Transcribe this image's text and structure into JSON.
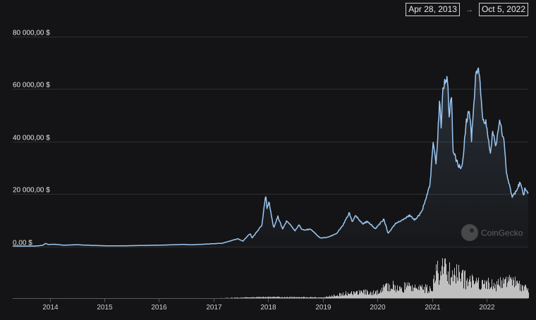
{
  "date_range": {
    "start": "Apr 28, 2013",
    "arrow": "→",
    "end": "Oct 5, 2022"
  },
  "watermark": "CoinGecko",
  "colors": {
    "background": "#141416",
    "price_line": "#9cc7f2",
    "volume_bars": "#dedede",
    "grid": "#2f2f33",
    "text": "#e6e6e6"
  },
  "chart_data": {
    "type": "area",
    "x_axis": {
      "type": "date",
      "range": [
        "2013-04-28",
        "2022-10-05"
      ],
      "tick_labels": [
        "2014",
        "2015",
        "2016",
        "2017",
        "2018",
        "2019",
        "2020",
        "2021",
        "2022"
      ]
    },
    "y_axis": {
      "range": [
        0,
        80000
      ],
      "tick_values": [
        0,
        20000,
        40000,
        60000,
        80000
      ],
      "tick_labels": [
        "0,00 $",
        "20 000,00 $",
        "40 000,00 $",
        "60 000,00 $",
        "80 000,00 $"
      ]
    },
    "grid": true,
    "series": [
      {
        "points": [
          [
            "2013-04-28",
            135
          ],
          [
            "2013-07-01",
            95
          ],
          [
            "2013-10-01",
            125
          ],
          [
            "2013-11-15",
            400
          ],
          [
            "2013-12-04",
            1150
          ],
          [
            "2013-12-20",
            700
          ],
          [
            "2014-02-01",
            800
          ],
          [
            "2014-04-01",
            450
          ],
          [
            "2014-07-01",
            620
          ],
          [
            "2014-10-01",
            380
          ],
          [
            "2015-01-15",
            210
          ],
          [
            "2015-06-01",
            230
          ],
          [
            "2015-11-04",
            400
          ],
          [
            "2016-01-01",
            430
          ],
          [
            "2016-06-15",
            720
          ],
          [
            "2016-08-01",
            580
          ],
          [
            "2017-01-01",
            1000
          ],
          [
            "2017-03-01",
            1200
          ],
          [
            "2017-06-12",
            2900
          ],
          [
            "2017-07-15",
            2000
          ],
          [
            "2017-09-01",
            4900
          ],
          [
            "2017-09-15",
            3200
          ],
          [
            "2017-11-01",
            6700
          ],
          [
            "2017-11-20",
            8200
          ],
          [
            "2017-12-07",
            16500
          ],
          [
            "2017-12-17",
            19500
          ],
          [
            "2017-12-22",
            14000
          ],
          [
            "2018-01-06",
            17000
          ],
          [
            "2018-02-06",
            7000
          ],
          [
            "2018-03-05",
            11500
          ],
          [
            "2018-04-06",
            6700
          ],
          [
            "2018-05-05",
            9800
          ],
          [
            "2018-06-29",
            5900
          ],
          [
            "2018-07-25",
            8300
          ],
          [
            "2018-08-15",
            6300
          ],
          [
            "2018-10-15",
            6500
          ],
          [
            "2018-11-20",
            4400
          ],
          [
            "2018-12-15",
            3200
          ],
          [
            "2019-02-01",
            3450
          ],
          [
            "2019-04-02",
            4900
          ],
          [
            "2019-05-15",
            8000
          ],
          [
            "2019-06-26",
            12800
          ],
          [
            "2019-07-17",
            9500
          ],
          [
            "2019-08-06",
            11800
          ],
          [
            "2019-09-24",
            8500
          ],
          [
            "2019-10-26",
            9500
          ],
          [
            "2019-12-17",
            6700
          ],
          [
            "2020-02-12",
            10300
          ],
          [
            "2020-03-13",
            4900
          ],
          [
            "2020-05-01",
            8800
          ],
          [
            "2020-06-01",
            9700
          ],
          [
            "2020-08-02",
            11800
          ],
          [
            "2020-09-05",
            10100
          ],
          [
            "2020-10-21",
            12900
          ],
          [
            "2020-11-20",
            18500
          ],
          [
            "2020-12-17",
            23000
          ],
          [
            "2021-01-08",
            40500
          ],
          [
            "2021-01-27",
            30500
          ],
          [
            "2021-02-21",
            57000
          ],
          [
            "2021-03-01",
            45000
          ],
          [
            "2021-03-13",
            61000
          ],
          [
            "2021-04-14",
            64000
          ],
          [
            "2021-04-25",
            49000
          ],
          [
            "2021-05-10",
            58000
          ],
          [
            "2021-05-19",
            37000
          ],
          [
            "2021-06-22",
            31000
          ],
          [
            "2021-07-20",
            29800
          ],
          [
            "2021-08-15",
            47000
          ],
          [
            "2021-09-06",
            52000
          ],
          [
            "2021-09-21",
            40500
          ],
          [
            "2021-10-20",
            66000
          ],
          [
            "2021-11-10",
            68000
          ],
          [
            "2021-12-04",
            49000
          ],
          [
            "2022-01-01",
            46500
          ],
          [
            "2022-01-24",
            35000
          ],
          [
            "2022-02-10",
            44000
          ],
          [
            "2022-03-01",
            38000
          ],
          [
            "2022-03-29",
            47500
          ],
          [
            "2022-04-30",
            38500
          ],
          [
            "2022-05-12",
            28500
          ],
          [
            "2022-06-18",
            19000
          ],
          [
            "2022-07-10",
            20500
          ],
          [
            "2022-08-13",
            24500
          ],
          [
            "2022-09-06",
            18800
          ],
          [
            "2022-09-12",
            22400
          ],
          [
            "2022-10-05",
            20300
          ]
        ]
      }
    ],
    "volume": {
      "points": [
        [
          "2013-04-28",
          0
        ],
        [
          "2016-12-31",
          0.3
        ],
        [
          "2017-12-31",
          3
        ],
        [
          "2018-12-31",
          2
        ],
        [
          "2019-06-30",
          15
        ],
        [
          "2019-12-31",
          17
        ],
        [
          "2020-03-13",
          33
        ],
        [
          "2020-12-31",
          25
        ],
        [
          "2021-01-15",
          60
        ],
        [
          "2021-02-22",
          78
        ],
        [
          "2021-05-19",
          70
        ],
        [
          "2021-09-07",
          45
        ],
        [
          "2021-11-10",
          45
        ],
        [
          "2022-01-24",
          36
        ],
        [
          "2022-06-13",
          45
        ],
        [
          "2022-10-05",
          20
        ]
      ]
    }
  }
}
